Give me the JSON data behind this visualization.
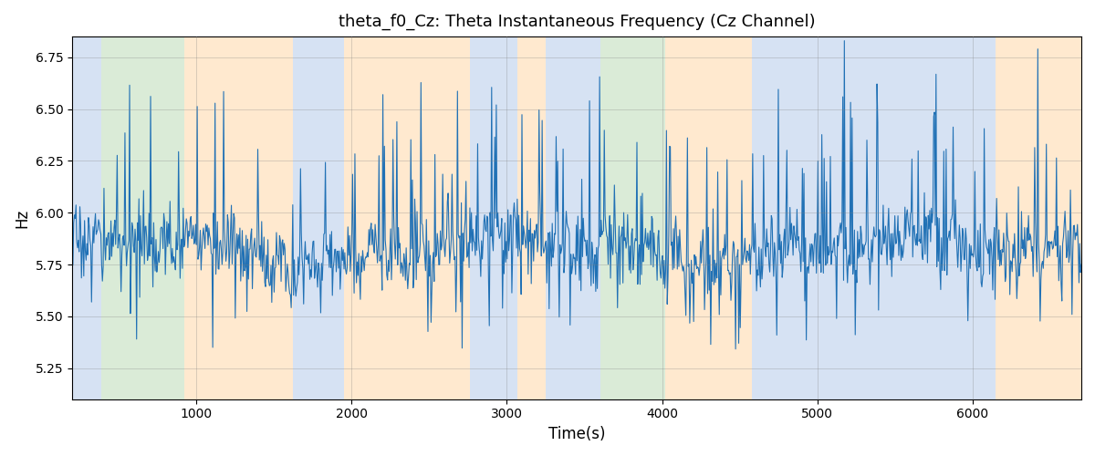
{
  "title": "theta_f0_Cz: Theta Instantaneous Frequency (Cz Channel)",
  "xlabel": "Time(s)",
  "ylabel": "Hz",
  "xlim": [
    200,
    6700
  ],
  "ylim": [
    5.1,
    6.85
  ],
  "yticks": [
    5.25,
    5.5,
    5.75,
    6.0,
    6.25,
    6.5,
    6.75
  ],
  "xticks": [
    1000,
    2000,
    3000,
    4000,
    5000,
    6000
  ],
  "line_color": "#2171b5",
  "line_width": 0.8,
  "background_regions": [
    {
      "xmin": 200,
      "xmax": 390,
      "color": "#aec6e8",
      "alpha": 0.5
    },
    {
      "xmin": 390,
      "xmax": 920,
      "color": "#b7d9b0",
      "alpha": 0.5
    },
    {
      "xmin": 920,
      "xmax": 1620,
      "color": "#ffd5a0",
      "alpha": 0.5
    },
    {
      "xmin": 1620,
      "xmax": 1950,
      "color": "#aec6e8",
      "alpha": 0.5
    },
    {
      "xmin": 1950,
      "xmax": 2760,
      "color": "#ffd5a0",
      "alpha": 0.5
    },
    {
      "xmin": 2760,
      "xmax": 3070,
      "color": "#aec6e8",
      "alpha": 0.5
    },
    {
      "xmin": 3070,
      "xmax": 3250,
      "color": "#ffd5a0",
      "alpha": 0.5
    },
    {
      "xmin": 3250,
      "xmax": 3600,
      "color": "#aec6e8",
      "alpha": 0.5
    },
    {
      "xmin": 3600,
      "xmax": 4020,
      "color": "#b7d9b0",
      "alpha": 0.5
    },
    {
      "xmin": 4020,
      "xmax": 4580,
      "color": "#ffd5a0",
      "alpha": 0.5
    },
    {
      "xmin": 4580,
      "xmax": 6150,
      "color": "#aec6e8",
      "alpha": 0.5
    },
    {
      "xmin": 6150,
      "xmax": 6700,
      "color": "#ffd5a0",
      "alpha": 0.5
    }
  ],
  "seed": 17,
  "n_points": 1300,
  "base_freq": 5.82,
  "noise_std": 0.085,
  "title_fontsize": 13,
  "label_fontsize": 12,
  "tick_fontsize": 10
}
